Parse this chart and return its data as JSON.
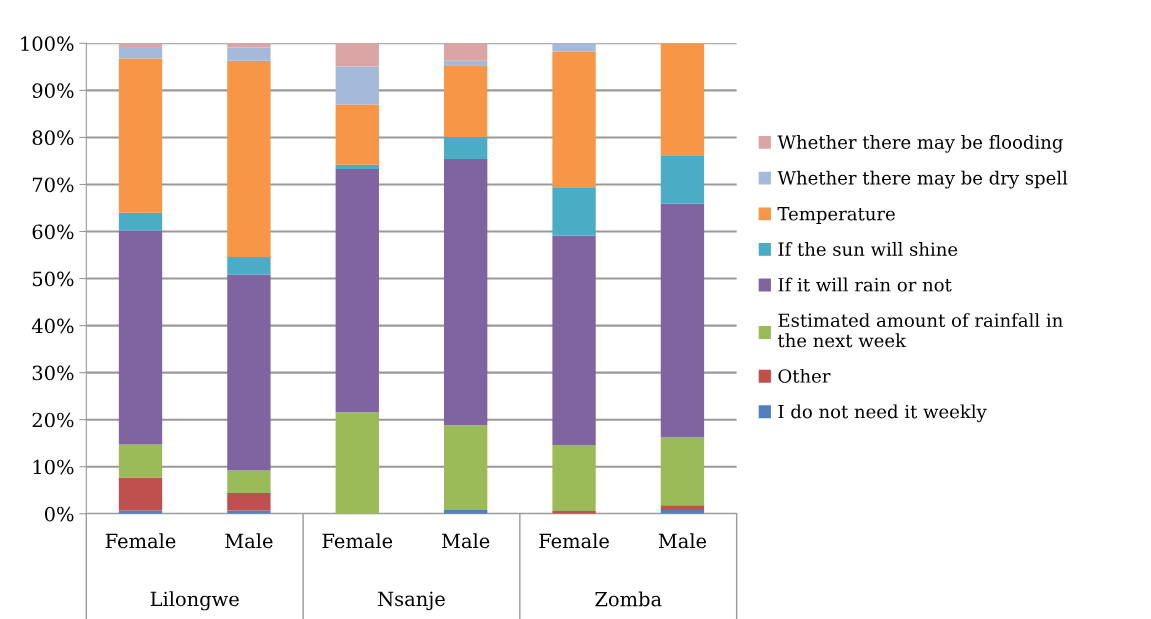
{
  "chart_data": {
    "type": "bar",
    "stacked": true,
    "categories": [
      "Female",
      "Male",
      "Female",
      "Male",
      "Female",
      "Male"
    ],
    "annotations": [
      "Lilongwe",
      "Nsanje",
      "Zomba"
    ],
    "series": [
      {
        "name": "I do not need it weekly",
        "color": "#4f81bd",
        "values": [
          0.7,
          0.7,
          0,
          0.8,
          0,
          0.8
        ]
      },
      {
        "name": "Other",
        "color": "#c0504d",
        "values": [
          7.0,
          3.7,
          0,
          0,
          0.6,
          1.0
        ]
      },
      {
        "name": "Estimated amount of rainfall in the next week",
        "color": "#9bbb59",
        "values": [
          7.0,
          4.8,
          21.6,
          18.0,
          14.0,
          14.5
        ]
      },
      {
        "name": "If it will rain or not",
        "color": "#8064a2",
        "values": [
          45.5,
          41.6,
          51.7,
          56.6,
          44.5,
          49.6
        ]
      },
      {
        "name": "If the sun will shine",
        "color": "#4bacc6",
        "values": [
          3.8,
          3.8,
          0.9,
          4.7,
          10.3,
          10.3
        ]
      },
      {
        "name": "Temperature",
        "color": "#f79646",
        "values": [
          32.8,
          41.7,
          12.8,
          15.1,
          28.8,
          23.8
        ]
      },
      {
        "name": "Whether there may be dry spell",
        "color": "#a5b9da",
        "values": [
          2.4,
          2.8,
          8.1,
          1.1,
          1.8,
          0
        ]
      },
      {
        "name": "Whether there may be flooding",
        "color": "#dba5a5",
        "values": [
          0.8,
          0.9,
          4.9,
          3.7,
          0,
          0
        ]
      }
    ],
    "ylim": [
      0,
      100
    ],
    "yticks": [
      {
        "value": 0,
        "label": "0%"
      },
      {
        "value": 10,
        "label": "10%"
      },
      {
        "value": 20,
        "label": "20%"
      },
      {
        "value": 30,
        "label": "30%"
      },
      {
        "value": 40,
        "label": "40%"
      },
      {
        "value": 50,
        "label": "50%"
      },
      {
        "value": 60,
        "label": "60%"
      },
      {
        "value": 70,
        "label": "70%"
      },
      {
        "value": 80,
        "label": "80%"
      },
      {
        "value": 90,
        "label": "90%"
      },
      {
        "value": 100,
        "label": "100%"
      }
    ],
    "grid": "y",
    "legend": "right"
  }
}
